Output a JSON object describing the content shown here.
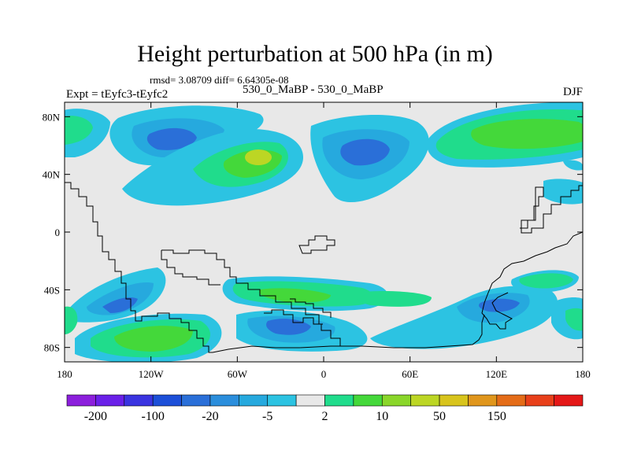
{
  "title": "Height perturbation at 500 hPa (in m)",
  "stats": "rmsd= 3.08709 diff= 6.64305e-08",
  "experiment": "Expt = tEyfc3-tEyfc2",
  "subtitle": "530_0_MaBP - 530_0_MaBP",
  "season": "DJF",
  "y_ticks": [
    {
      "label": "80N",
      "value": 80
    },
    {
      "label": "40N",
      "value": 40
    },
    {
      "label": "0",
      "value": 0
    },
    {
      "label": "40S",
      "value": -40
    },
    {
      "label": "80S",
      "value": -80
    }
  ],
  "x_ticks": [
    {
      "label": "180",
      "value": -180
    },
    {
      "label": "120W",
      "value": -120
    },
    {
      "label": "60W",
      "value": -60
    },
    {
      "label": "0",
      "value": 0
    },
    {
      "label": "60E",
      "value": 60
    },
    {
      "label": "120E",
      "value": 120
    },
    {
      "label": "180",
      "value": 180
    }
  ],
  "colorbar": {
    "colors": [
      "#8c1fdc",
      "#6a20e8",
      "#3a34e0",
      "#1c4fd8",
      "#2a6fd8",
      "#2b8edc",
      "#26a9de",
      "#2cc3e2",
      "#e8e8e8",
      "#20dc8c",
      "#44d83a",
      "#8ad62a",
      "#bcd624",
      "#d8c41c",
      "#e0961c",
      "#e46c18",
      "#e8401a",
      "#e41818"
    ],
    "labels": [
      "-200",
      "-100",
      "-20",
      "-5",
      "2",
      "10",
      "50",
      "150"
    ]
  },
  "map_colors": {
    "background": "#e8e8e8",
    "light_blue": "#2cc3e2",
    "mid_blue": "#26a9de",
    "dark_blue": "#2a6fd8",
    "teal": "#20dc8c",
    "green": "#44d83a",
    "yellow_green": "#bcd624"
  }
}
